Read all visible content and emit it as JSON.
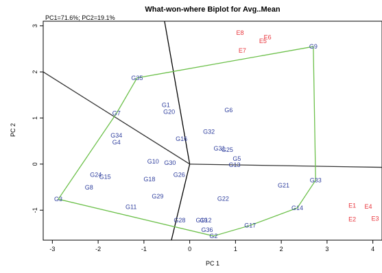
{
  "chart_data": {
    "type": "scatter",
    "title": "What-won-where Biplot for Avg..Mean",
    "subtitle": "PC1=71.6%; PC2=19.1%",
    "xlabel": "PC 1",
    "ylabel": "PC 2",
    "xlim": [
      -3.2,
      4.2
    ],
    "ylim": [
      -1.65,
      3.1
    ],
    "xticks": [
      "-3",
      "-2",
      "-1",
      "0",
      "1",
      "2",
      "3",
      "4"
    ],
    "yticks": [
      "-1",
      "0",
      "1",
      "2",
      "3"
    ],
    "grid": false,
    "colors": {
      "genotype": "#2f3f9e",
      "environment": "#e8333a",
      "hull": "#6cc04a",
      "sector": "#000000"
    },
    "series": [
      {
        "points": [
          {
            "label": "G9",
            "x": 2.7,
            "y": 2.55
          },
          {
            "label": "G35",
            "x": -1.15,
            "y": 1.87
          },
          {
            "label": "G7",
            "x": -1.6,
            "y": 1.1
          },
          {
            "label": "G1",
            "x": -0.52,
            "y": 1.28
          },
          {
            "label": "G20",
            "x": -0.45,
            "y": 1.13
          },
          {
            "label": "G6",
            "x": 0.85,
            "y": 1.17
          },
          {
            "label": "G32",
            "x": 0.42,
            "y": 0.7
          },
          {
            "label": "G34",
            "x": -1.6,
            "y": 0.62
          },
          {
            "label": "G4",
            "x": -1.6,
            "y": 0.47
          },
          {
            "label": "G16",
            "x": -0.18,
            "y": 0.55
          },
          {
            "label": "G31",
            "x": 0.65,
            "y": 0.34
          },
          {
            "label": "G25",
            "x": 0.82,
            "y": 0.31
          },
          {
            "label": "G5",
            "x": 1.03,
            "y": 0.12
          },
          {
            "label": "G13",
            "x": 0.98,
            "y": -0.02
          },
          {
            "label": "G10",
            "x": -0.8,
            "y": 0.06
          },
          {
            "label": "G30",
            "x": -0.43,
            "y": 0.03
          },
          {
            "label": "G24",
            "x": -2.05,
            "y": -0.23
          },
          {
            "label": "G15",
            "x": -1.85,
            "y": -0.28
          },
          {
            "label": "G8",
            "x": -2.2,
            "y": -0.51
          },
          {
            "label": "G18",
            "x": -0.88,
            "y": -0.33
          },
          {
            "label": "G26",
            "x": -0.23,
            "y": -0.23
          },
          {
            "label": "G33",
            "x": 2.75,
            "y": -0.35
          },
          {
            "label": "G21",
            "x": 2.05,
            "y": -0.46
          },
          {
            "label": "G29",
            "x": -0.7,
            "y": -0.7
          },
          {
            "label": "G22",
            "x": 0.73,
            "y": -0.75
          },
          {
            "label": "G3",
            "x": -2.87,
            "y": -0.76
          },
          {
            "label": "G11",
            "x": -1.28,
            "y": -0.93
          },
          {
            "label": "G14",
            "x": 2.35,
            "y": -0.95
          },
          {
            "label": "G28",
            "x": -0.22,
            "y": -1.22
          },
          {
            "label": "G19",
            "x": 0.26,
            "y": -1.22
          },
          {
            "label": "G12",
            "x": 0.35,
            "y": -1.22
          },
          {
            "label": "G17",
            "x": 1.32,
            "y": -1.33
          },
          {
            "label": "G36",
            "x": 0.38,
            "y": -1.43
          },
          {
            "label": "G2",
            "x": 0.52,
            "y": -1.56
          }
        ]
      },
      {
        "points": [
          {
            "label": "E8",
            "x": 1.1,
            "y": 2.85
          },
          {
            "label": "E6",
            "x": 1.7,
            "y": 2.75
          },
          {
            "label": "E5",
            "x": 1.6,
            "y": 2.67
          },
          {
            "label": "E7",
            "x": 1.15,
            "y": 2.46
          },
          {
            "label": "E1",
            "x": 3.55,
            "y": -0.9
          },
          {
            "label": "E4",
            "x": 3.9,
            "y": -0.92
          },
          {
            "label": "E2",
            "x": 3.55,
            "y": -1.2
          },
          {
            "label": "E3",
            "x": 4.05,
            "y": -1.18
          }
        ]
      }
    ],
    "hull": [
      {
        "x": 2.7,
        "y": 2.55
      },
      {
        "x": 2.75,
        "y": -0.35
      },
      {
        "x": 2.35,
        "y": -0.95
      },
      {
        "x": 1.32,
        "y": -1.33
      },
      {
        "x": 0.52,
        "y": -1.56
      },
      {
        "x": -2.87,
        "y": -0.76
      },
      {
        "x": -1.6,
        "y": 1.1
      },
      {
        "x": -1.15,
        "y": 1.87
      }
    ],
    "sector_lines": [
      {
        "x": -0.55,
        "y": 3.1
      },
      {
        "x": -3.2,
        "y": 2.0
      },
      {
        "x": 4.2,
        "y": -0.07
      },
      {
        "x": -0.4,
        "y": -1.65
      }
    ]
  }
}
